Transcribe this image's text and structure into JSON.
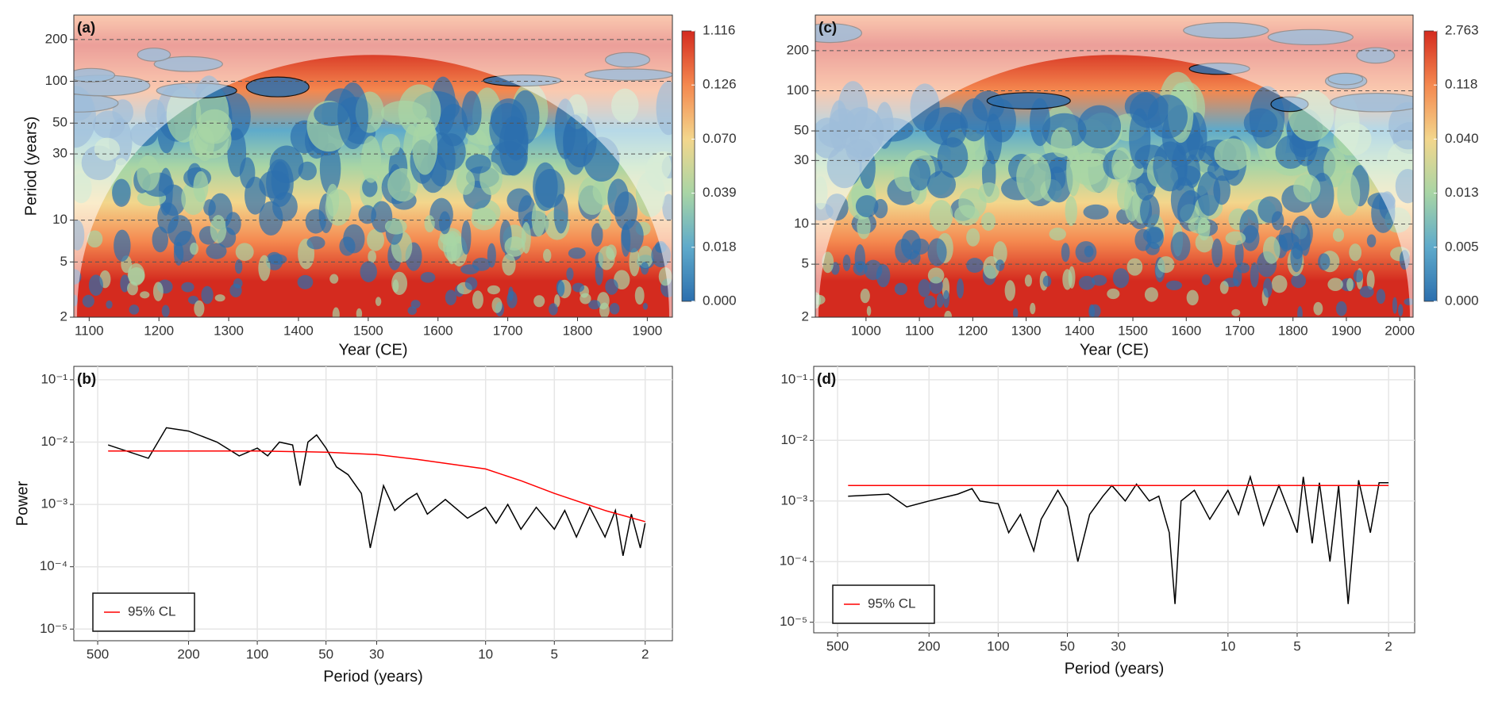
{
  "chart_data": [
    {
      "type": "heatmap",
      "panel_label": "(a)",
      "x_label": "Year (CE)",
      "y_label": "Period (years)",
      "xlim": [
        1078,
        1936
      ],
      "xticks": [
        1100,
        1200,
        1300,
        1400,
        1500,
        1600,
        1700,
        1800,
        1900
      ],
      "ylim": [
        2,
        300
      ],
      "y_log": true,
      "yticks": [
        2,
        5,
        10,
        30,
        50,
        100,
        200
      ],
      "colorbar_labels": [
        "1.116",
        "0.126",
        "0.070",
        "0.039",
        "0.018",
        "0.000"
      ],
      "colormap": [
        "#2c6fae",
        "#5eaacb",
        "#a8d5a5",
        "#f3d68c",
        "#f4884f",
        "#d42b1f"
      ]
    },
    {
      "type": "line",
      "panel_label": "(b)",
      "x_label": "Period (years)",
      "y_label": "Power",
      "xlim": [
        636,
        1.52
      ],
      "x_log": true,
      "xticks": [
        500,
        200,
        100,
        50,
        30,
        10,
        5,
        2
      ],
      "ylim": [
        6.5e-06,
        0.164
      ],
      "y_log": true,
      "yticks": [
        {
          "value": 0.1,
          "label": "10⁻¹"
        },
        {
          "value": 0.01,
          "label": "10⁻²"
        },
        {
          "value": 0.001,
          "label": "10⁻³"
        },
        {
          "value": 0.0001,
          "label": "10⁻⁴"
        },
        {
          "value": 1e-05,
          "label": "10⁻⁵"
        }
      ],
      "grid": true,
      "legend": "bottom-left",
      "series": [
        {
          "color": "#000000",
          "x": [
            450,
            300,
            250,
            200,
            150,
            120,
            100,
            90,
            80,
            70,
            65,
            60,
            55,
            50,
            45,
            40,
            35,
            32,
            28,
            25,
            22,
            20,
            18,
            15,
            12,
            10,
            9,
            8,
            7,
            6,
            5,
            4.5,
            4,
            3.5,
            3,
            2.7,
            2.5,
            2.3,
            2.1,
            2
          ],
          "values": [
            0.009,
            0.0055,
            0.017,
            0.015,
            0.01,
            0.006,
            0.008,
            0.006,
            0.01,
            0.009,
            0.002,
            0.01,
            0.013,
            0.008,
            0.004,
            0.003,
            0.0015,
            0.0002,
            0.002,
            0.0008,
            0.0012,
            0.0015,
            0.0007,
            0.0012,
            0.0006,
            0.0009,
            0.0005,
            0.001,
            0.0004,
            0.0009,
            0.0004,
            0.0008,
            0.0003,
            0.0009,
            0.0003,
            0.0008,
            0.00015,
            0.0007,
            0.0002,
            0.0005
          ]
        },
        {
          "name": "95% CL",
          "color": "#ff0000",
          "x": [
            450,
            100,
            50,
            30,
            20,
            10,
            7,
            5,
            3,
            2
          ],
          "values": [
            0.0072,
            0.0072,
            0.0069,
            0.0063,
            0.0053,
            0.0037,
            0.0024,
            0.0015,
            0.0008,
            0.00053
          ]
        }
      ]
    },
    {
      "type": "heatmap",
      "panel_label": "(c)",
      "x_label": "Year (CE)",
      "xlim": [
        905,
        2025
      ],
      "xticks": [
        1000,
        1100,
        1200,
        1300,
        1400,
        1500,
        1600,
        1700,
        1800,
        1900,
        2000
      ],
      "ylim": [
        2,
        370
      ],
      "y_log": true,
      "yticks": [
        2,
        5,
        10,
        30,
        50,
        100,
        200
      ],
      "colorbar_labels": [
        "2.763",
        "0.118",
        "0.040",
        "0.013",
        "0.005",
        "0.000"
      ],
      "colormap": [
        "#2c6fae",
        "#5eaacb",
        "#a8d5a5",
        "#f3d68c",
        "#f4884f",
        "#d42b1f"
      ]
    },
    {
      "type": "line",
      "panel_label": "(d)",
      "x_label": "Period (years)",
      "xlim": [
        635,
        1.54
      ],
      "x_log": true,
      "xticks": [
        500,
        200,
        100,
        50,
        30,
        10,
        5,
        2
      ],
      "ylim": [
        6.7e-06,
        0.166
      ],
      "y_log": true,
      "yticks": [
        {
          "value": 0.1,
          "label": "10⁻¹"
        },
        {
          "value": 0.01,
          "label": "10⁻²"
        },
        {
          "value": 0.001,
          "label": "10⁻³"
        },
        {
          "value": 0.0001,
          "label": "10⁻⁴"
        },
        {
          "value": 1e-05,
          "label": "10⁻⁵"
        }
      ],
      "grid": true,
      "legend": "bottom-left",
      "series": [
        {
          "color": "#000000",
          "x": [
            450,
            300,
            250,
            200,
            150,
            130,
            120,
            100,
            90,
            80,
            70,
            65,
            55,
            50,
            45,
            40,
            35,
            32,
            28,
            25,
            22,
            20,
            18,
            17,
            16,
            14,
            12,
            10,
            9,
            8,
            7,
            6,
            5,
            4.7,
            4.3,
            4,
            3.6,
            3.3,
            3,
            2.7,
            2.4,
            2.2,
            2
          ],
          "values": [
            0.0012,
            0.0013,
            0.0008,
            0.001,
            0.0013,
            0.0016,
            0.001,
            0.0009,
            0.0003,
            0.0006,
            0.00015,
            0.0005,
            0.0015,
            0.0008,
            0.0001,
            0.0006,
            0.0012,
            0.0018,
            0.001,
            0.0019,
            0.001,
            0.0012,
            0.0003,
            2e-05,
            0.001,
            0.0015,
            0.0005,
            0.0015,
            0.0006,
            0.0025,
            0.0004,
            0.0018,
            0.0003,
            0.0025,
            0.0002,
            0.002,
            0.0001,
            0.0018,
            2e-05,
            0.0022,
            0.0003,
            0.002,
            0.002
          ]
        },
        {
          "name": "95% CL",
          "color": "#ff0000",
          "x": [
            450,
            2
          ],
          "values": [
            0.0018,
            0.0018
          ]
        }
      ]
    }
  ]
}
